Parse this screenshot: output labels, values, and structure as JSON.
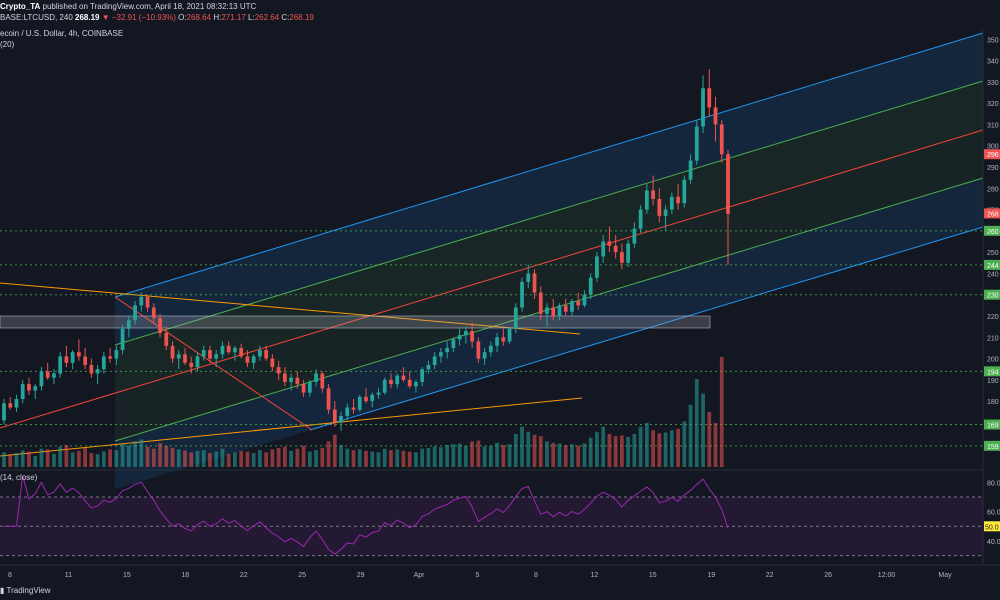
{
  "header": {
    "author": "Crypto_TA",
    "published": "published on TradingView.com, April 18, 2021 08:32:13 UTC",
    "symbol": "BASE:LTCUSD, 240",
    "last": "268.19",
    "arrow": "▼",
    "change": "−32.91 (−10.93%)",
    "ohlc_o_label": "O:",
    "ohlc_o": "268.64",
    "ohlc_h_label": "H:",
    "ohlc_h": "271.17",
    "ohlc_l_label": "L:",
    "ohlc_l": "262.64",
    "ohlc_c_label": "C:",
    "ohlc_c": "268.19",
    "pair": "ecoin / U.S. Dollar, 4h, COINBASE",
    "volume_indicator": "(20)"
  },
  "rsi_label": "(14, close)",
  "footer": {
    "brand": "TradingView"
  },
  "colors": {
    "bg": "#131722",
    "up": "#26a69a",
    "down": "#ef5350",
    "channel_blue": "#2196f3",
    "channel_green": "#4caf50",
    "channel_mid": "#f44336",
    "trend_orange": "#ff9800",
    "rsi": "#9c27b0",
    "level_green": "#4caf50"
  },
  "chart_data": {
    "type": "candlestick",
    "y_range": [
      150,
      352
    ],
    "y_ticks": [
      "350",
      "340",
      "330",
      "320",
      "310",
      "300",
      "290",
      "280",
      "270",
      "260",
      "250",
      "240",
      "230",
      "220",
      "210",
      "200",
      "190",
      "180",
      "170",
      "160"
    ],
    "price_badges": [
      {
        "value": 296,
        "label": "296",
        "color": "#ef5350"
      },
      {
        "value": 268.19,
        "label": "268",
        "color": "#ef5350"
      },
      {
        "value": 260,
        "label": "260",
        "color": "#4caf50"
      },
      {
        "value": 244,
        "label": "244",
        "color": "#4caf50"
      },
      {
        "value": 230,
        "label": "230",
        "color": "#4caf50"
      },
      {
        "value": 194,
        "label": "194",
        "color": "#4caf50"
      },
      {
        "value": 169,
        "label": "169",
        "color": "#4caf50"
      },
      {
        "value": 159,
        "label": "159",
        "color": "#4caf50"
      }
    ],
    "horizontal_levels": [
      260,
      244,
      230,
      194,
      169,
      159
    ],
    "x_ticks": [
      "8",
      "11",
      "15",
      "18",
      "22",
      "25",
      "29",
      "Apr",
      "5",
      "8",
      "12",
      "15",
      "19",
      "22",
      "26",
      "12:00",
      "May"
    ],
    "rsi_ticks": [
      "80.0",
      "60.0",
      "50.0",
      "40.0"
    ],
    "rsi_range": [
      27,
      85
    ],
    "rsi_levels": [
      70,
      50,
      30
    ],
    "rsi_badge": {
      "value": 50,
      "label": "50.0"
    },
    "candles": [
      [
        171,
        181,
        169,
        179
      ],
      [
        179,
        182,
        176,
        177
      ],
      [
        177,
        183,
        175,
        181
      ],
      [
        181,
        190,
        179,
        188
      ],
      [
        188,
        191,
        183,
        185
      ],
      [
        185,
        188,
        181,
        187
      ],
      [
        187,
        196,
        185,
        194
      ],
      [
        194,
        198,
        190,
        191
      ],
      [
        191,
        195,
        188,
        193
      ],
      [
        193,
        203,
        191,
        201
      ],
      [
        201,
        206,
        196,
        198
      ],
      [
        198,
        204,
        195,
        203
      ],
      [
        203,
        209,
        199,
        201
      ],
      [
        201,
        205,
        195,
        197
      ],
      [
        197,
        200,
        191,
        193
      ],
      [
        193,
        197,
        188,
        195
      ],
      [
        195,
        203,
        193,
        201
      ],
      [
        201,
        205,
        198,
        200
      ],
      [
        200,
        206,
        197,
        204
      ],
      [
        204,
        216,
        202,
        214
      ],
      [
        214,
        220,
        210,
        218
      ],
      [
        218,
        227,
        216,
        225
      ],
      [
        225,
        231,
        222,
        229
      ],
      [
        229,
        230,
        222,
        224
      ],
      [
        224,
        226,
        217,
        219
      ],
      [
        219,
        221,
        210,
        212
      ],
      [
        212,
        215,
        204,
        206
      ],
      [
        206,
        208,
        198,
        200
      ],
      [
        200,
        204,
        195,
        202
      ],
      [
        202,
        205,
        197,
        198
      ],
      [
        198,
        201,
        193,
        196
      ],
      [
        196,
        203,
        194,
        201
      ],
      [
        201,
        206,
        199,
        204
      ],
      [
        204,
        206,
        198,
        200
      ],
      [
        200,
        204,
        196,
        202
      ],
      [
        202,
        208,
        200,
        206
      ],
      [
        206,
        208,
        202,
        203
      ],
      [
        203,
        206,
        199,
        205
      ],
      [
        205,
        207,
        200,
        201
      ],
      [
        201,
        204,
        196,
        198
      ],
      [
        198,
        202,
        195,
        201
      ],
      [
        201,
        206,
        199,
        204
      ],
      [
        204,
        206,
        199,
        200
      ],
      [
        200,
        202,
        194,
        196
      ],
      [
        196,
        199,
        190,
        193
      ],
      [
        193,
        196,
        187,
        189
      ],
      [
        189,
        193,
        185,
        191
      ],
      [
        191,
        194,
        186,
        188
      ],
      [
        188,
        190,
        182,
        184
      ],
      [
        184,
        190,
        182,
        189
      ],
      [
        189,
        195,
        187,
        193
      ],
      [
        193,
        194,
        184,
        186
      ],
      [
        186,
        188,
        174,
        176
      ],
      [
        176,
        180,
        168,
        170
      ],
      [
        170,
        175,
        166,
        173
      ],
      [
        173,
        179,
        171,
        177
      ],
      [
        177,
        181,
        174,
        176
      ],
      [
        176,
        183,
        175,
        182
      ],
      [
        182,
        186,
        179,
        180
      ],
      [
        180,
        184,
        177,
        183
      ],
      [
        183,
        186,
        181,
        184
      ],
      [
        184,
        191,
        183,
        190
      ],
      [
        190,
        193,
        186,
        188
      ],
      [
        188,
        193,
        186,
        192
      ],
      [
        192,
        196,
        189,
        190
      ],
      [
        190,
        194,
        186,
        187
      ],
      [
        187,
        190,
        184,
        189
      ],
      [
        189,
        196,
        187,
        195
      ],
      [
        195,
        199,
        193,
        197
      ],
      [
        197,
        203,
        195,
        201
      ],
      [
        201,
        205,
        198,
        203
      ],
      [
        203,
        208,
        200,
        205
      ],
      [
        205,
        210,
        203,
        209
      ],
      [
        209,
        214,
        206,
        211
      ],
      [
        211,
        215,
        207,
        213
      ],
      [
        213,
        217,
        205,
        208
      ],
      [
        208,
        210,
        198,
        200
      ],
      [
        200,
        205,
        197,
        203
      ],
      [
        203,
        208,
        201,
        206
      ],
      [
        206,
        212,
        203,
        210
      ],
      [
        210,
        214,
        206,
        208
      ],
      [
        208,
        215,
        207,
        214
      ],
      [
        214,
        226,
        212,
        224
      ],
      [
        224,
        238,
        222,
        236
      ],
      [
        236,
        244,
        233,
        240
      ],
      [
        240,
        242,
        228,
        231
      ],
      [
        231,
        234,
        218,
        221
      ],
      [
        221,
        226,
        215,
        224
      ],
      [
        224,
        228,
        218,
        220
      ],
      [
        220,
        226,
        218,
        225
      ],
      [
        225,
        228,
        220,
        222
      ],
      [
        222,
        228,
        220,
        227
      ],
      [
        227,
        231,
        223,
        225
      ],
      [
        225,
        232,
        224,
        230
      ],
      [
        230,
        240,
        228,
        238
      ],
      [
        238,
        250,
        236,
        248
      ],
      [
        248,
        258,
        245,
        255
      ],
      [
        255,
        262,
        250,
        253
      ],
      [
        253,
        258,
        247,
        250
      ],
      [
        250,
        254,
        242,
        245
      ],
      [
        245,
        256,
        243,
        254
      ],
      [
        254,
        264,
        252,
        261
      ],
      [
        261,
        272,
        259,
        270
      ],
      [
        270,
        282,
        268,
        279
      ],
      [
        279,
        286,
        272,
        275
      ],
      [
        275,
        280,
        264,
        267
      ],
      [
        267,
        272,
        260,
        270
      ],
      [
        270,
        278,
        268,
        276
      ],
      [
        276,
        282,
        270,
        273
      ],
      [
        273,
        286,
        271,
        284
      ],
      [
        284,
        296,
        282,
        293
      ],
      [
        293,
        312,
        291,
        309
      ],
      [
        309,
        333,
        306,
        327
      ],
      [
        327,
        336,
        314,
        318
      ],
      [
        318,
        323,
        302,
        310
      ],
      [
        310,
        312,
        292,
        296
      ],
      [
        296,
        298,
        244,
        268
      ]
    ],
    "volume": [
      40,
      35,
      38,
      45,
      42,
      30,
      50,
      48,
      36,
      55,
      60,
      40,
      44,
      52,
      38,
      35,
      42,
      48,
      46,
      62,
      58,
      70,
      75,
      55,
      50,
      65,
      58,
      52,
      48,
      45,
      40,
      44,
      46,
      38,
      42,
      50,
      36,
      40,
      44,
      42,
      38,
      46,
      40,
      48,
      52,
      55,
      44,
      50,
      58,
      42,
      46,
      52,
      70,
      88,
      60,
      50,
      46,
      48,
      44,
      42,
      40,
      50,
      46,
      48,
      44,
      42,
      40,
      50,
      52,
      56,
      54,
      60,
      62,
      64,
      58,
      70,
      72,
      56,
      58,
      66,
      60,
      62,
      90,
      110,
      96,
      88,
      84,
      70,
      66,
      64,
      60,
      62,
      58,
      64,
      80,
      96,
      110,
      90,
      84,
      86,
      82,
      90,
      110,
      120,
      100,
      92,
      94,
      100,
      104,
      124,
      170,
      240,
      200,
      150,
      120,
      300
    ]
  }
}
